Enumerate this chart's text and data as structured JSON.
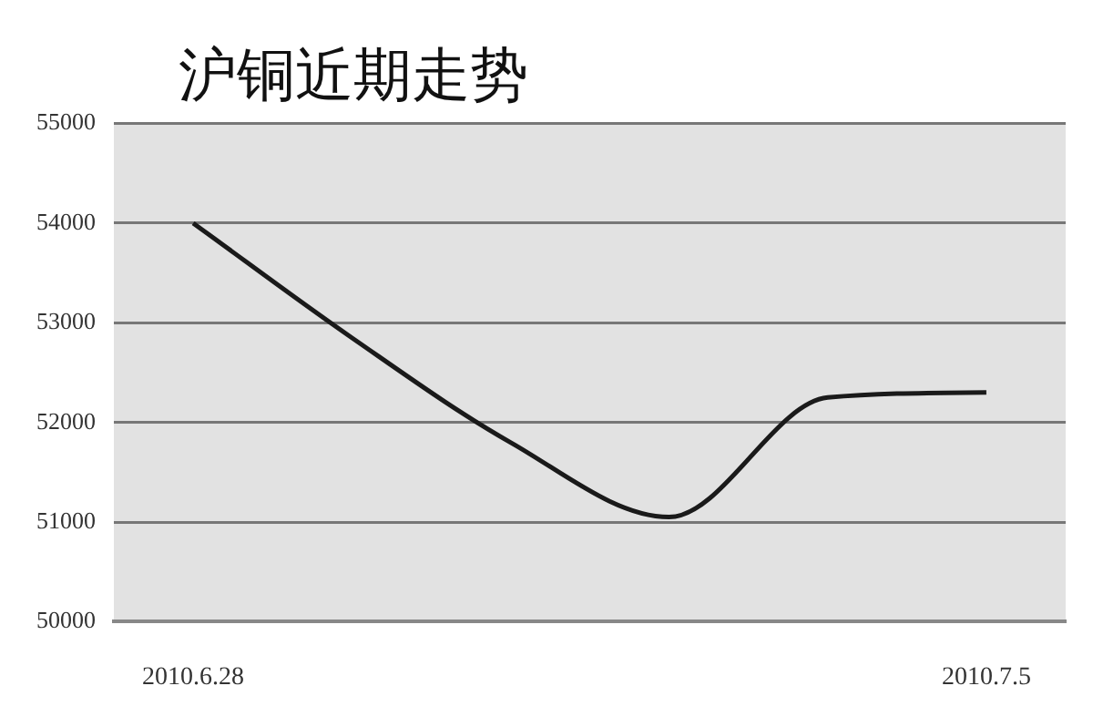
{
  "chart_data": {
    "type": "line",
    "title": "沪铜近期走势",
    "categories": [
      "2010.6.28",
      null,
      null,
      null,
      null,
      "2010.7.5"
    ],
    "series": [
      {
        "color": "#1a1a1a",
        "values": [
          54000,
          52850,
          51800,
          51050,
          52250,
          52300
        ]
      }
    ],
    "ylim": [
      50000,
      55000
    ],
    "yticks": [
      50000,
      51000,
      52000,
      53000,
      54000,
      55000
    ],
    "grid": "y",
    "legend": false,
    "marker": "none",
    "line_style": "solid"
  }
}
